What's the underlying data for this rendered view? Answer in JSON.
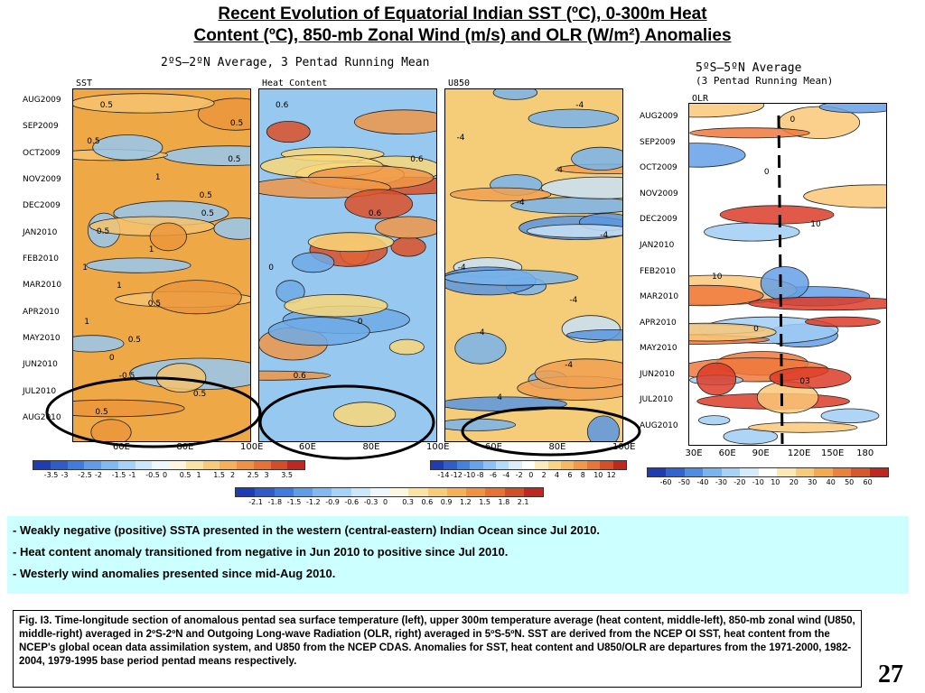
{
  "title": {
    "line1": "Recent Evolution of Equatorial Indian SST (ºC), 0-300m Heat",
    "line2": "Content (ºC), 850-mb Zonal Wind (m/s) and OLR (W/m²) Anomalies"
  },
  "left_group": {
    "title": "2ºS–2ºN Average, 3 Pentad Running Mean",
    "time_labels": [
      "AUG2009",
      "SEP2009",
      "OCT2009",
      "NOV2009",
      "DEC2009",
      "JAN2010",
      "FEB2010",
      "MAR2010",
      "APR2010",
      "MAY2010",
      "JUN2010",
      "JUL2010",
      "AUG2010"
    ]
  },
  "right_group": {
    "title_line1": "5ºS–5ºN Average",
    "title_line2": "(3 Pentad Running Mean)",
    "time_labels": [
      "AUG2009",
      "SEP2009",
      "OCT2009",
      "NOV2009",
      "DEC2009",
      "JAN2010",
      "FEB2010",
      "MAR2010",
      "APR2010",
      "MAY2010",
      "JUN2010",
      "JUL2010",
      "AUG2010"
    ]
  },
  "chart_data": [
    {
      "type": "heatmap",
      "title": "SST",
      "x_ticks": [
        "60E",
        "80E",
        "100E"
      ],
      "contour_labels": [
        "0.5",
        "0.5",
        "0.5",
        "0.5",
        "1",
        "0.5",
        "0.5",
        "0.5",
        "1",
        "1",
        "1",
        "0.5",
        "1",
        "0.5",
        "0",
        "-0.5",
        "0.5",
        "0.5"
      ],
      "colorbar": {
        "ticks": [
          "-3.5",
          "-3",
          "-2.5",
          "-2",
          "-1.5",
          "-1",
          "-0.5",
          "0",
          "0.5",
          "1",
          "1.5",
          "2",
          "2.5",
          "3",
          "3.5"
        ]
      }
    },
    {
      "type": "heatmap",
      "title": "Heat Content",
      "x_ticks": [
        "60E",
        "80E",
        "100E"
      ],
      "contour_labels": [
        "0.6",
        "0.6",
        "0.6",
        "0",
        "0",
        "0.6"
      ],
      "colorbar": {
        "ticks": [
          "-2.1",
          "-1.8",
          "-1.5",
          "-1.2",
          "-0.9",
          "-0.6",
          "-0.3",
          "0",
          "0.3",
          "0.6",
          "0.9",
          "1.2",
          "1.5",
          "1.8",
          "2.1"
        ]
      }
    },
    {
      "type": "heatmap",
      "title": "U850",
      "x_ticks": [
        "60E",
        "80E",
        "100E"
      ],
      "contour_labels": [
        "-4",
        "-4",
        "-4",
        "-4",
        "-4",
        "-4",
        "-4",
        "-4",
        "-4",
        "4"
      ],
      "colorbar": {
        "ticks": [
          "-14",
          "-12",
          "-10",
          "-8",
          "-6",
          "-4",
          "-2",
          "0",
          "2",
          "4",
          "6",
          "8",
          "10",
          "12"
        ]
      }
    },
    {
      "type": "heatmap",
      "title": "OLR",
      "x_ticks": [
        "30E",
        "60E",
        "90E",
        "120E",
        "150E",
        "180"
      ],
      "contour_labels": [
        "0",
        "0",
        "10",
        "10",
        "0",
        "03"
      ],
      "colorbar": {
        "ticks": [
          "-60",
          "-50",
          "-40",
          "-30",
          "-20",
          "-10",
          "10",
          "20",
          "30",
          "40",
          "50",
          "60"
        ]
      }
    }
  ],
  "bullets": [
    "- Weakly negative (positive) SSTA presented in the western (central-eastern) Indian Ocean since Jul 2010.",
    "- Heat content anomaly transitioned from negative in Jun 2010 to positive  since Jul 2010.",
    "-  Westerly wind anomalies presented since mid-Aug 2010."
  ],
  "caption": "Fig. I3. Time-longitude section of anomalous pentad sea surface temperature (left), upper 300m temperature average (heat content, middle-left), 850-mb zonal wind (U850, middle-right) averaged in 2ºS-2ºN and Outgoing Long-wave Radiation (OLR, right) averaged in 5ºS-5ºN. SST are derived from the NCEP OI SST, heat content from the NCEP's global ocean data assimilation system, and U850 from the NCEP CDAS.  Anomalies for SST, heat content and U850/OLR are departures from the 1971-2000, 1982-2004, 1979-1995 base period pentad means respectively.",
  "page_number": "27",
  "colors": {
    "bullet_background": "#ccffff",
    "highlight_circle": "#000000",
    "olr_dashed_line": "#000000"
  }
}
